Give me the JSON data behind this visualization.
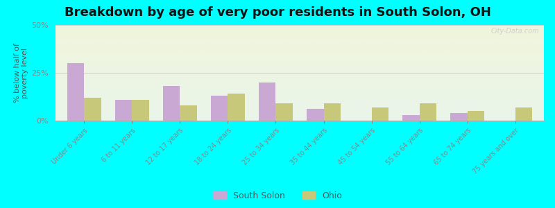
{
  "title": "Breakdown by age of very poor residents in South Solon, OH",
  "ylabel": "% below half of\npoverty level",
  "categories": [
    "Under 6 years",
    "6 to 11 years",
    "12 to 17 years",
    "18 to 24 years",
    "25 to 34 years",
    "35 to 44 years",
    "45 to 54 years",
    "55 to 64 years",
    "65 to 74 years",
    "75 years and over"
  ],
  "south_solon": [
    30,
    11,
    18,
    13,
    20,
    6,
    0,
    3,
    4,
    0
  ],
  "ohio": [
    12,
    11,
    8,
    14,
    9,
    9,
    7,
    9,
    5,
    7
  ],
  "bar_color_solon": "#c9a8d4",
  "bar_color_ohio": "#c8c87a",
  "ylim": [
    0,
    50
  ],
  "yticks": [
    0,
    25,
    50
  ],
  "yticklabels": [
    "0%",
    "25%",
    "50%"
  ],
  "outer_bg": "#00ffff",
  "plot_bg_top": "#eaf5ea",
  "plot_bg_bottom": "#f0f5dc",
  "title_fontsize": 13,
  "axis_fontsize": 8,
  "legend_labels": [
    "South Solon",
    "Ohio"
  ],
  "watermark": "City-Data.com"
}
